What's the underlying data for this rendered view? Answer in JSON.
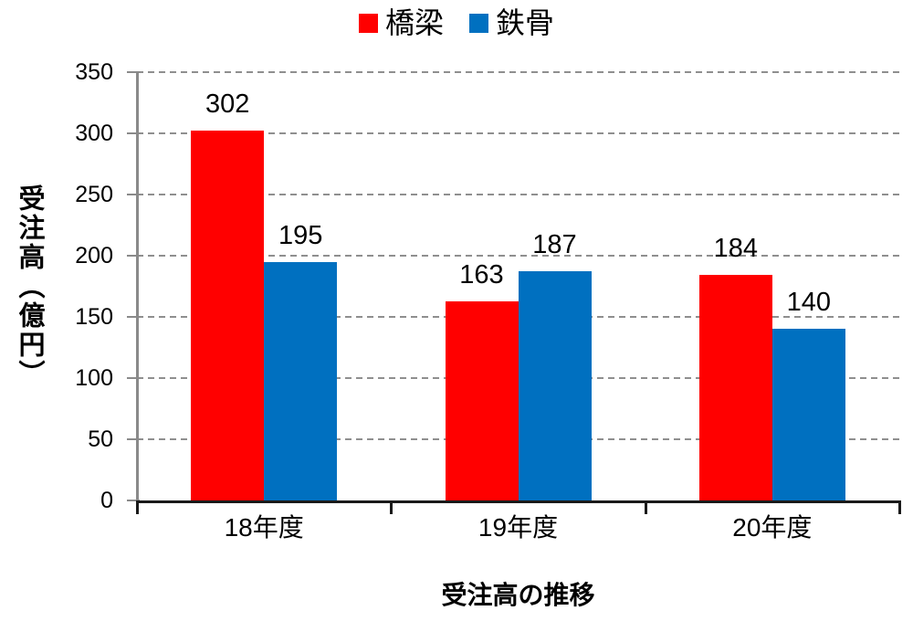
{
  "chart_data": {
    "type": "bar",
    "title": "受注高の推移",
    "ylabel": "受注高（億円）",
    "xlabel": "",
    "categories": [
      "18年度",
      "19年度",
      "20年度"
    ],
    "series": [
      {
        "name": "橋梁",
        "color": "#FF0000",
        "values": [
          302,
          163,
          184
        ]
      },
      {
        "name": "鉄骨",
        "color": "#0070C0",
        "values": [
          195,
          187,
          140
        ]
      }
    ],
    "ylim": [
      0,
      350
    ],
    "yticks": [
      0,
      50,
      100,
      150,
      200,
      250,
      300,
      350
    ],
    "grid": "horizontal-dashed",
    "legend_position": "top-center",
    "bar_value_labels": [
      [
        302,
        163,
        184
      ],
      [
        195,
        187,
        140
      ]
    ]
  },
  "colors": {
    "grid": "#8F8F8F",
    "y_axis": "#8A8A8A",
    "x_axis": "#1A1A1A",
    "text": "#000000",
    "background": "#FFFFFF"
  }
}
